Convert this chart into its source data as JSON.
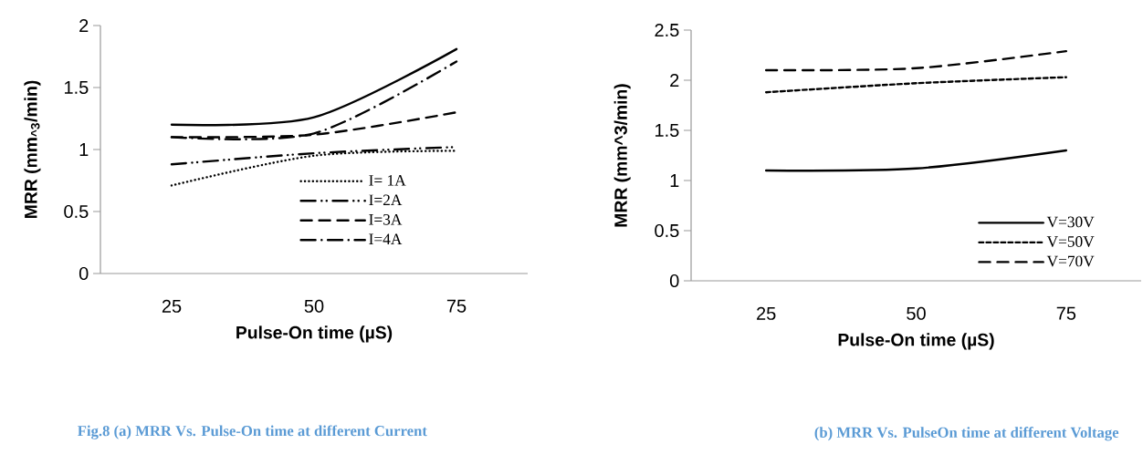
{
  "chart_data": [
    {
      "type": "line",
      "xlabel": "Pulse-On time (µS)",
      "ylabel": "MRR (mm$_{^3}$/min)",
      "categories": [
        "25",
        "50",
        "75"
      ],
      "ylim": [
        0,
        2
      ],
      "yticks": [
        0,
        0.5,
        1,
        1.5,
        2
      ],
      "legend": "bottom right",
      "series": [
        {
          "name": "I= 1A",
          "color": "#000000",
          "line_style": "dotted",
          "values": [
            0.71,
            0.95,
            0.99
          ]
        },
        {
          "name": "I=2A",
          "color": "#000000",
          "line_style": "dashdotdot",
          "values": [
            0.88,
            0.97,
            1.02
          ]
        },
        {
          "name": "I=3A",
          "color": "#000000",
          "line_style": "dashed",
          "values": [
            1.1,
            1.12,
            1.3
          ]
        },
        {
          "name": "I=4A",
          "color": "#000000",
          "line_style": "dashdot",
          "values": [
            1.1,
            1.13,
            1.71
          ]
        },
        {
          "color": "#000000",
          "line_style": "solid",
          "values": [
            1.2,
            1.26,
            1.81
          ]
        }
      ],
      "annotations": [
        "Fig.8 (a) MRR Vs. Pulse-On time at different Current"
      ]
    },
    {
      "type": "line",
      "xlabel": "Pulse-On time (µS)",
      "ylabel": "MRR (mm^3/min)",
      "categories": [
        "25",
        "50",
        "75"
      ],
      "ylim": [
        0,
        2.5
      ],
      "yticks": [
        0,
        0.5,
        1,
        1.5,
        2,
        2.5
      ],
      "legend": "bottom right",
      "series": [
        {
          "name": "V=30V",
          "color": "#000000",
          "line_style": "solid",
          "values": [
            1.1,
            1.12,
            1.3
          ]
        },
        {
          "name": "V=50V",
          "color": "#000000",
          "line_style": "shortdash",
          "values": [
            1.88,
            1.97,
            2.03
          ]
        },
        {
          "name": "V=70V",
          "color": "#000000",
          "line_style": "dashed",
          "values": [
            2.1,
            2.12,
            2.29
          ]
        }
      ],
      "annotations": [
        "(b) MRR Vs. PulseOn time at different Voltage"
      ]
    }
  ]
}
